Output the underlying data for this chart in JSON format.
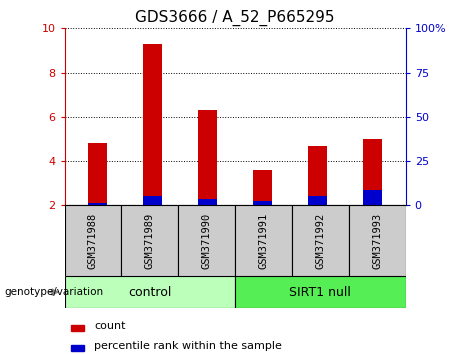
{
  "title": "GDS3666 / A_52_P665295",
  "samples": [
    "GSM371988",
    "GSM371989",
    "GSM371990",
    "GSM371991",
    "GSM371992",
    "GSM371993"
  ],
  "count_values": [
    4.8,
    9.3,
    6.3,
    3.6,
    4.7,
    5.0
  ],
  "percentile_values": [
    2.1,
    2.4,
    2.3,
    2.2,
    2.4,
    2.7
  ],
  "baseline": 2.0,
  "ylim_left": [
    2,
    10
  ],
  "yticks_left": [
    2,
    4,
    6,
    8,
    10
  ],
  "yticks_right": [
    0,
    25,
    50,
    75,
    100
  ],
  "ytick_labels_right": [
    "0",
    "25",
    "50",
    "75",
    "100%"
  ],
  "bar_color_red": "#cc0000",
  "bar_color_blue": "#0000cc",
  "bar_width": 0.35,
  "control_label": "control",
  "sirt1_label": "SIRT1 null",
  "control_color": "#bbffbb",
  "sirt1_color": "#55ee55",
  "genotype_label": "genotype/variation",
  "legend_count": "count",
  "legend_percentile": "percentile rank within the sample",
  "xlabel_bg_color": "#cccccc",
  "left_tick_color": "#cc0000",
  "right_tick_color": "#0000cc",
  "title_fontsize": 11,
  "axis_fontsize": 8,
  "label_fontsize": 8
}
